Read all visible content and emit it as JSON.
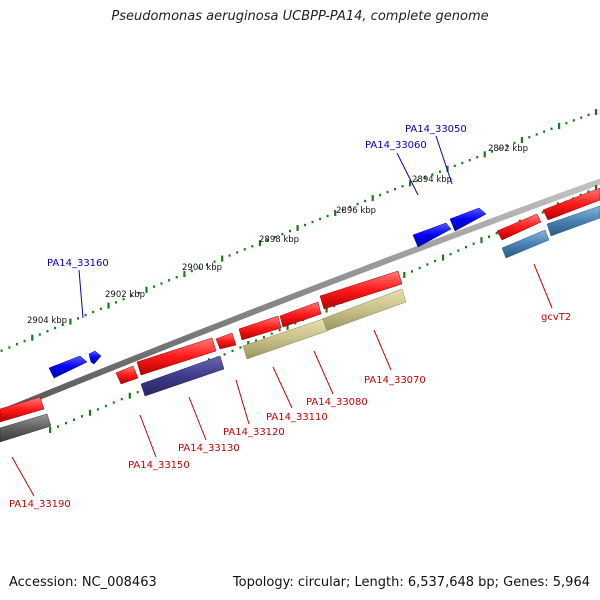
{
  "title": "Pseudomonas aeruginosa UCBPP-PA14, complete genome",
  "footer": {
    "accession": "Accession: NC_008463",
    "summary": "Topology: circular; Length: 6,537,648 bp; Genes: 5,964"
  },
  "colors": {
    "backbone": "#8a8a8a",
    "tick": "#1a7a1a",
    "forward_gene": "#0000ee",
    "forward_label": "#0000cc",
    "reverse_gene": "#ee1111",
    "reverse_label": "#cc0000",
    "cds_khaki": "#c8c089",
    "cds_purple": "#3f3a8a",
    "cds_steelblue": "#4682b4",
    "cds_gray": "#606060"
  },
  "coordinate_labels": [
    "2892 kbp",
    "2894 kbp",
    "2896 kbp",
    "2898 kbp",
    "2900 kbp",
    "2902 kbp",
    "2904 kbp"
  ],
  "gene_labels": {
    "forward": [
      "PA14_33050",
      "PA14_33060",
      "PA14_33160"
    ],
    "reverse": [
      "gcvT2",
      "PA14_33070",
      "PA14_33080",
      "PA14_33110",
      "PA14_33120",
      "PA14_33130",
      "PA14_33150",
      "PA14_33190"
    ]
  }
}
